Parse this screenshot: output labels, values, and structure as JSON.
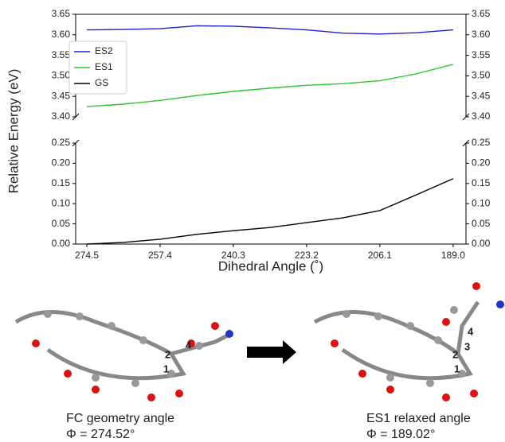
{
  "chart_data": [
    {
      "type": "line",
      "ylabel": "Relative Energy (eV)",
      "x": [
        274.5,
        265.95,
        257.4,
        248.85,
        240.3,
        231.75,
        223.2,
        214.65,
        206.1,
        197.55,
        189.0
      ],
      "xlim": [
        277.1,
        186.0
      ],
      "ylim": [
        3.4,
        3.65
      ],
      "yticks": [
        {
          "value": 3.4,
          "label": "3.40"
        },
        {
          "value": 3.45,
          "label": "3.45"
        },
        {
          "value": 3.5,
          "label": "3.50"
        },
        {
          "value": 3.55,
          "label": "3.55"
        },
        {
          "value": 3.6,
          "label": "3.60"
        },
        {
          "value": 3.65,
          "label": "3.65"
        }
      ],
      "legend": "upper left",
      "series": [
        {
          "name": "ES2",
          "color": "#1f1fd6",
          "values": [
            3.612,
            3.613,
            3.615,
            3.622,
            3.621,
            3.617,
            3.612,
            3.604,
            3.602,
            3.605,
            3.612
          ]
        },
        {
          "name": "ES1",
          "color": "#2ec82e",
          "values": [
            3.425,
            3.431,
            3.44,
            3.452,
            3.462,
            3.47,
            3.477,
            3.481,
            3.488,
            3.505,
            3.528
          ]
        }
      ]
    },
    {
      "type": "line",
      "xlabel": "Dihedral Angle (˚)",
      "x": [
        274.5,
        265.95,
        257.4,
        248.85,
        240.3,
        231.75,
        223.2,
        214.65,
        206.1,
        197.55,
        189.0
      ],
      "xlim": [
        277.1,
        186.0
      ],
      "xticks": [
        274.5,
        257.4,
        240.3,
        223.2,
        206.1,
        {
          "value": 189.0,
          "label": "189.0"
        }
      ],
      "ylim": [
        0,
        0.25
      ],
      "yticks": [
        {
          "value": 0,
          "label": "0.00"
        },
        {
          "value": 0.05,
          "label": "0.05"
        },
        {
          "value": 0.1,
          "label": "0.10"
        },
        {
          "value": 0.15,
          "label": "0.15"
        },
        {
          "value": 0.2,
          "label": "0.20"
        },
        {
          "value": 0.25,
          "label": "0.25"
        }
      ],
      "series": [
        {
          "name": "GS",
          "color": "#000000",
          "values": [
            0.0,
            0.004,
            0.012,
            0.024,
            0.033,
            0.041,
            0.053,
            0.065,
            0.083,
            0.122,
            0.162
          ]
        }
      ]
    }
  ],
  "captions": [
    {
      "title": "FC geometry angle",
      "angle": "Φ = 274.52°"
    },
    {
      "title": "ES1 relaxed angle",
      "angle": "Φ = 189.02°"
    }
  ]
}
